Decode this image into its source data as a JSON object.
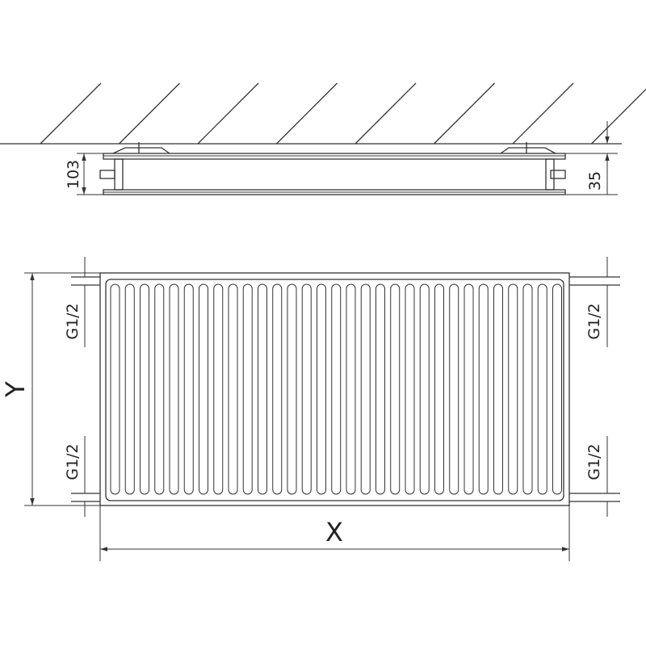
{
  "top_view": {
    "depth_label": "103",
    "offset_label": "35"
  },
  "front_view": {
    "height_label": "Y",
    "width_label": "X",
    "connections": {
      "left_top": "G1/2",
      "left_bottom": "G1/2",
      "right_top": "G1/2",
      "right_bottom": "G1/2"
    }
  }
}
